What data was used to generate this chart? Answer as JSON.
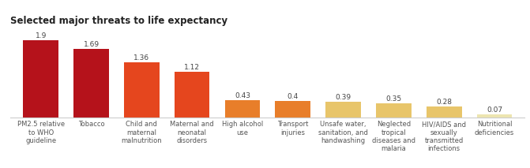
{
  "title": "Selected major threats to life expectancy",
  "categories": [
    "PM2.5 relative\nto WHO\nguideline",
    "Tobacco",
    "Child and\nmaternal\nmalnutrition",
    "Maternal and\nneonatal\ndisorders",
    "High alcohol\nuse",
    "Transport\ninjuries",
    "Unsafe water,\nsanitation, and\nhandwashing",
    "Neglected\ntropical\ndiseases and\nmalaria",
    "HIV/AIDS and\nsexually\ntransmitted\ninfections",
    "Nutritional\ndeficiencies"
  ],
  "values": [
    1.9,
    1.69,
    1.36,
    1.12,
    0.43,
    0.4,
    0.39,
    0.35,
    0.28,
    0.07
  ],
  "bar_colors": [
    "#b5121b",
    "#b5121b",
    "#e5461e",
    "#e5461e",
    "#e87e2a",
    "#e87e2a",
    "#e8c56a",
    "#e8c56a",
    "#e8c56a",
    "#ede5b0"
  ],
  "value_labels": [
    "1.9",
    "1.69",
    "1.36",
    "1.12",
    "0.43",
    "0.4",
    "0.39",
    "0.35",
    "0.28",
    "0.07"
  ],
  "background_color": "#ffffff",
  "title_fontsize": 8.5,
  "label_fontsize": 6.0,
  "value_fontsize": 6.5,
  "ylim": [
    0,
    2.15
  ]
}
